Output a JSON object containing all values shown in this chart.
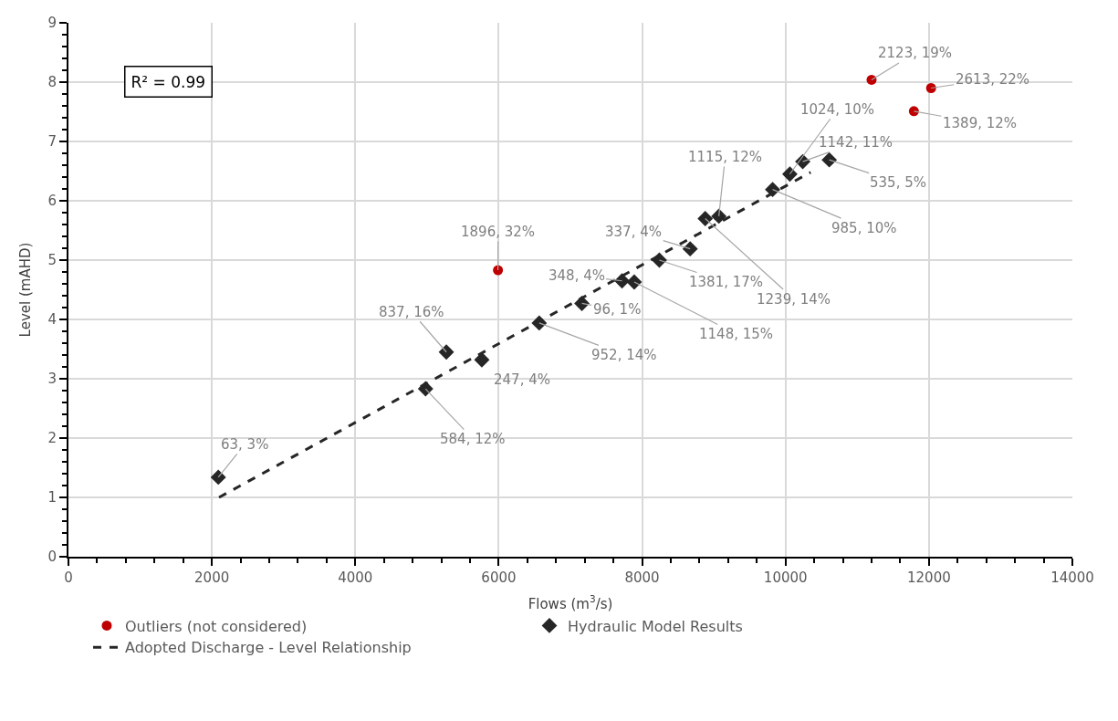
{
  "chart_data": {
    "type": "scatter",
    "xlabel": "Flows (m$^{3}$/s)",
    "ylabel": "Level (mAHD)",
    "xlim": [
      0,
      14000
    ],
    "xticks": [
      0,
      2000,
      4000,
      6000,
      8000,
      10000,
      12000,
      14000
    ],
    "ylim": [
      0,
      9
    ],
    "yticks": [
      0,
      1,
      2,
      3,
      4,
      5,
      6,
      7,
      8,
      9
    ],
    "grid": true,
    "legend": "bottom",
    "series": [
      {
        "name": "Outliers (not considered)",
        "color": "#c00000",
        "marker": "circle",
        "x": [
          5990,
          11200,
          12030,
          11790
        ],
        "values": [
          4.83,
          8.04,
          7.9,
          7.51
        ]
      },
      {
        "name": "Hydraulic Model Results",
        "color": "#262626",
        "marker": "diamond",
        "x": [
          2090,
          4980,
          5270,
          5765,
          6565,
          7160,
          7720,
          7890,
          8240,
          8670,
          8880,
          9070,
          9820,
          10060,
          10240,
          10610
        ],
        "values": [
          1.34,
          2.83,
          3.45,
          3.32,
          3.94,
          4.27,
          4.65,
          4.63,
          5.0,
          5.19,
          5.7,
          5.74,
          6.19,
          6.45,
          6.66,
          6.69
        ]
      },
      {
        "name": "Adopted Discharge - Level Relationship",
        "color": "#262626",
        "type": "line",
        "line_style": "dashed",
        "marker": "none",
        "x": [
          2100,
          10350
        ],
        "values": [
          1.0,
          6.48
        ]
      }
    ],
    "annotations": [
      "R² = 0.99",
      {
        "text": "1896, 32%",
        "x": 5990,
        "y": 4.83
      },
      {
        "text": "2123, 19%",
        "x": 11200,
        "y": 8.04
      },
      {
        "text": "2613, 22%",
        "x": 12030,
        "y": 7.9
      },
      {
        "text": "1389, 12%",
        "x": 11790,
        "y": 7.51
      },
      {
        "text": "63, 3%",
        "x": 2090,
        "y": 1.34
      },
      {
        "text": "584, 12%",
        "x": 4980,
        "y": 2.83
      },
      {
        "text": "837, 16%",
        "x": 5270,
        "y": 3.45
      },
      {
        "text": "247, 4%",
        "x": 5765,
        "y": 3.32
      },
      {
        "text": "952, 14%",
        "x": 6565,
        "y": 3.94
      },
      {
        "text": "96, 1%",
        "x": 7160,
        "y": 4.27
      },
      {
        "text": "348, 4%",
        "x": 7720,
        "y": 4.65
      },
      {
        "text": "1148, 15%",
        "x": 7890,
        "y": 4.63
      },
      {
        "text": "1381, 17%",
        "x": 8240,
        "y": 5.0
      },
      {
        "text": "337, 4%",
        "x": 8670,
        "y": 5.19
      },
      {
        "text": "1239, 14%",
        "x": 8880,
        "y": 5.7
      },
      {
        "text": "1115, 12%",
        "x": 9070,
        "y": 5.74
      },
      {
        "text": "985, 10%",
        "x": 9820,
        "y": 6.19
      },
      {
        "text": "1024, 10%",
        "x": 10060,
        "y": 6.45
      },
      {
        "text": "1142, 11%",
        "x": 10240,
        "y": 6.66
      },
      {
        "text": "535, 5%",
        "x": 10610,
        "y": 6.69
      }
    ]
  }
}
